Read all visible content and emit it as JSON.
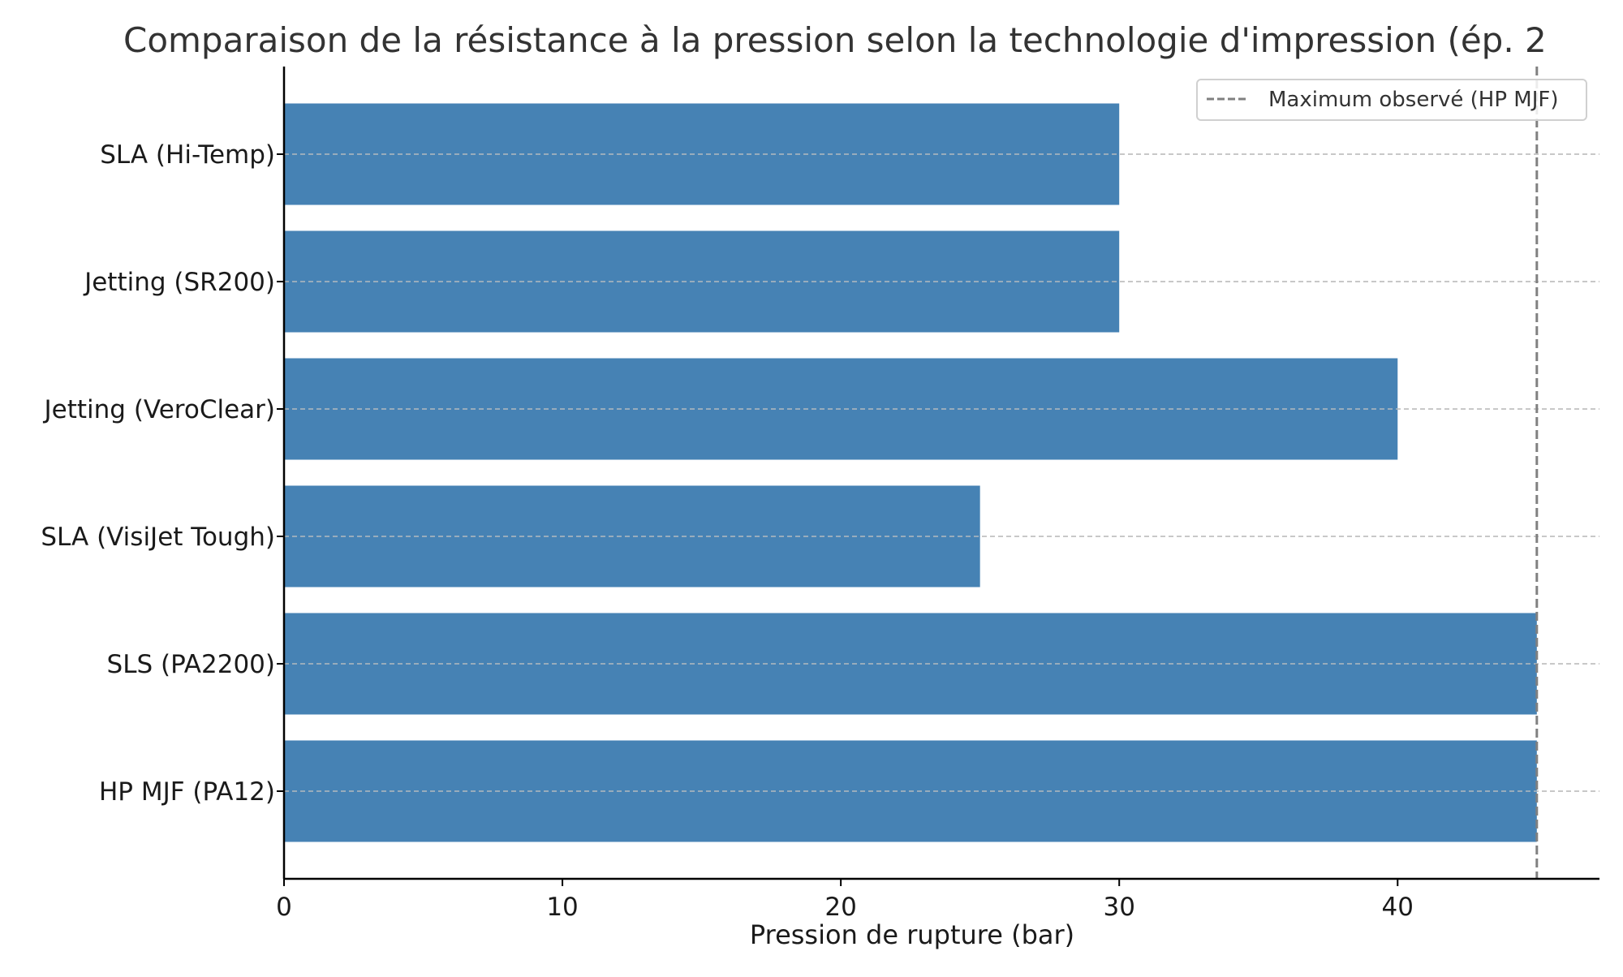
{
  "chart_data": {
    "type": "bar",
    "orientation": "horizontal",
    "title": "Comparaison de la résistance à la pression selon la technologie d'impression (ép. 2",
    "xlabel": "Pression de rupture (bar)",
    "ylabel": "",
    "categories": [
      "SLA (Hi-Temp)",
      "Jetting (SR200)",
      "Jetting (VeroClear)",
      "SLA (VisiJet Tough)",
      "SLS (PA2200)",
      "HP MJF (PA12)"
    ],
    "values": [
      30,
      30,
      40,
      25,
      45,
      45
    ],
    "xlim": [
      0,
      47.25
    ],
    "xticks": [
      "0",
      "10",
      "20",
      "30",
      "40"
    ],
    "reference_line": {
      "value": 45,
      "label": "Maximum observé (HP MJF)",
      "style": "dashed",
      "color": "#808080"
    },
    "legend_position": "top-right",
    "grid": "horizontal dashed",
    "colors": {
      "bar": "#4682b4",
      "grid": "#c0c0c0",
      "axis": "#000000",
      "text": "#1a1a1a",
      "title": "#333333"
    }
  }
}
